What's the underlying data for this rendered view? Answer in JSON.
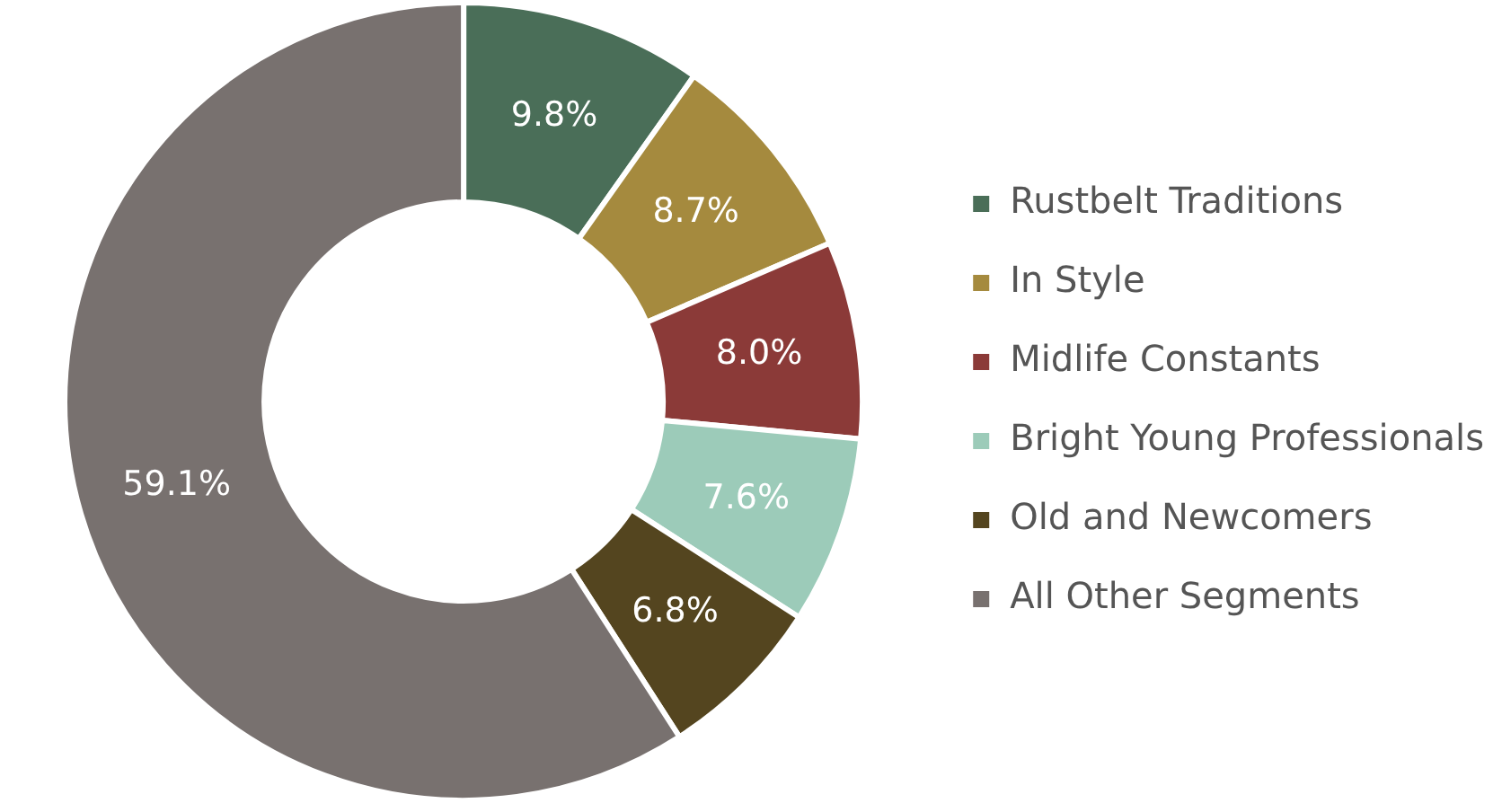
{
  "chart_data": {
    "type": "donut",
    "categories": [
      "Rustbelt Traditions",
      "In Style",
      "Midlife Constants",
      "Bright Young Professionals",
      "Old and Newcomers",
      "All Other Segments"
    ],
    "values": [
      9.8,
      8.7,
      8.0,
      7.6,
      6.8,
      59.1
    ],
    "colors": [
      "#4a6e58",
      "#a58a3e",
      "#8b3a38",
      "#9ccbb9",
      "#54451f",
      "#78716f"
    ],
    "value_labels": [
      "9.8%",
      "8.7%",
      "8.0%",
      "7.6%",
      "6.8%",
      "59.1%"
    ],
    "legend": "right"
  }
}
